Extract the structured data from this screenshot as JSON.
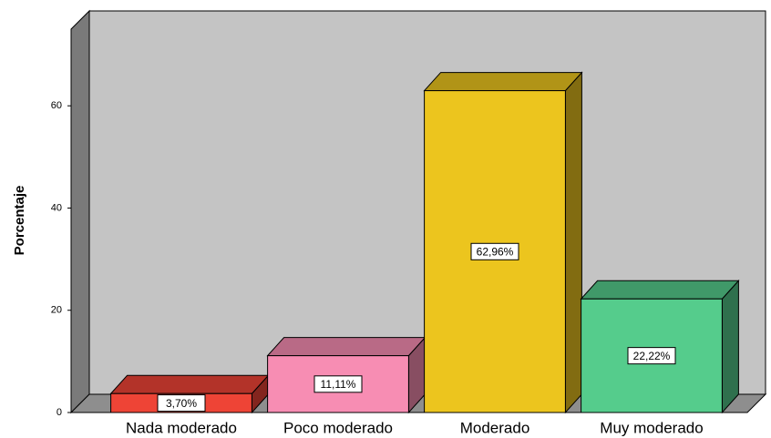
{
  "chart_data": {
    "type": "bar3d",
    "y_label": "Porcentaje",
    "categories": [
      "Nada moderado",
      "Poco moderado",
      "Moderado",
      "Muy moderado"
    ],
    "values": [
      3.7,
      11.11,
      62.96,
      22.22
    ],
    "value_labels": [
      "3,70%",
      "11,11%",
      "62,96%",
      "22,22%"
    ],
    "colors": [
      "#ee4436",
      "#f78db3",
      "#ecc51e",
      "#55cc8c"
    ],
    "ylim": [
      0,
      75
    ],
    "yticks": [
      0,
      20,
      40,
      60
    ]
  }
}
